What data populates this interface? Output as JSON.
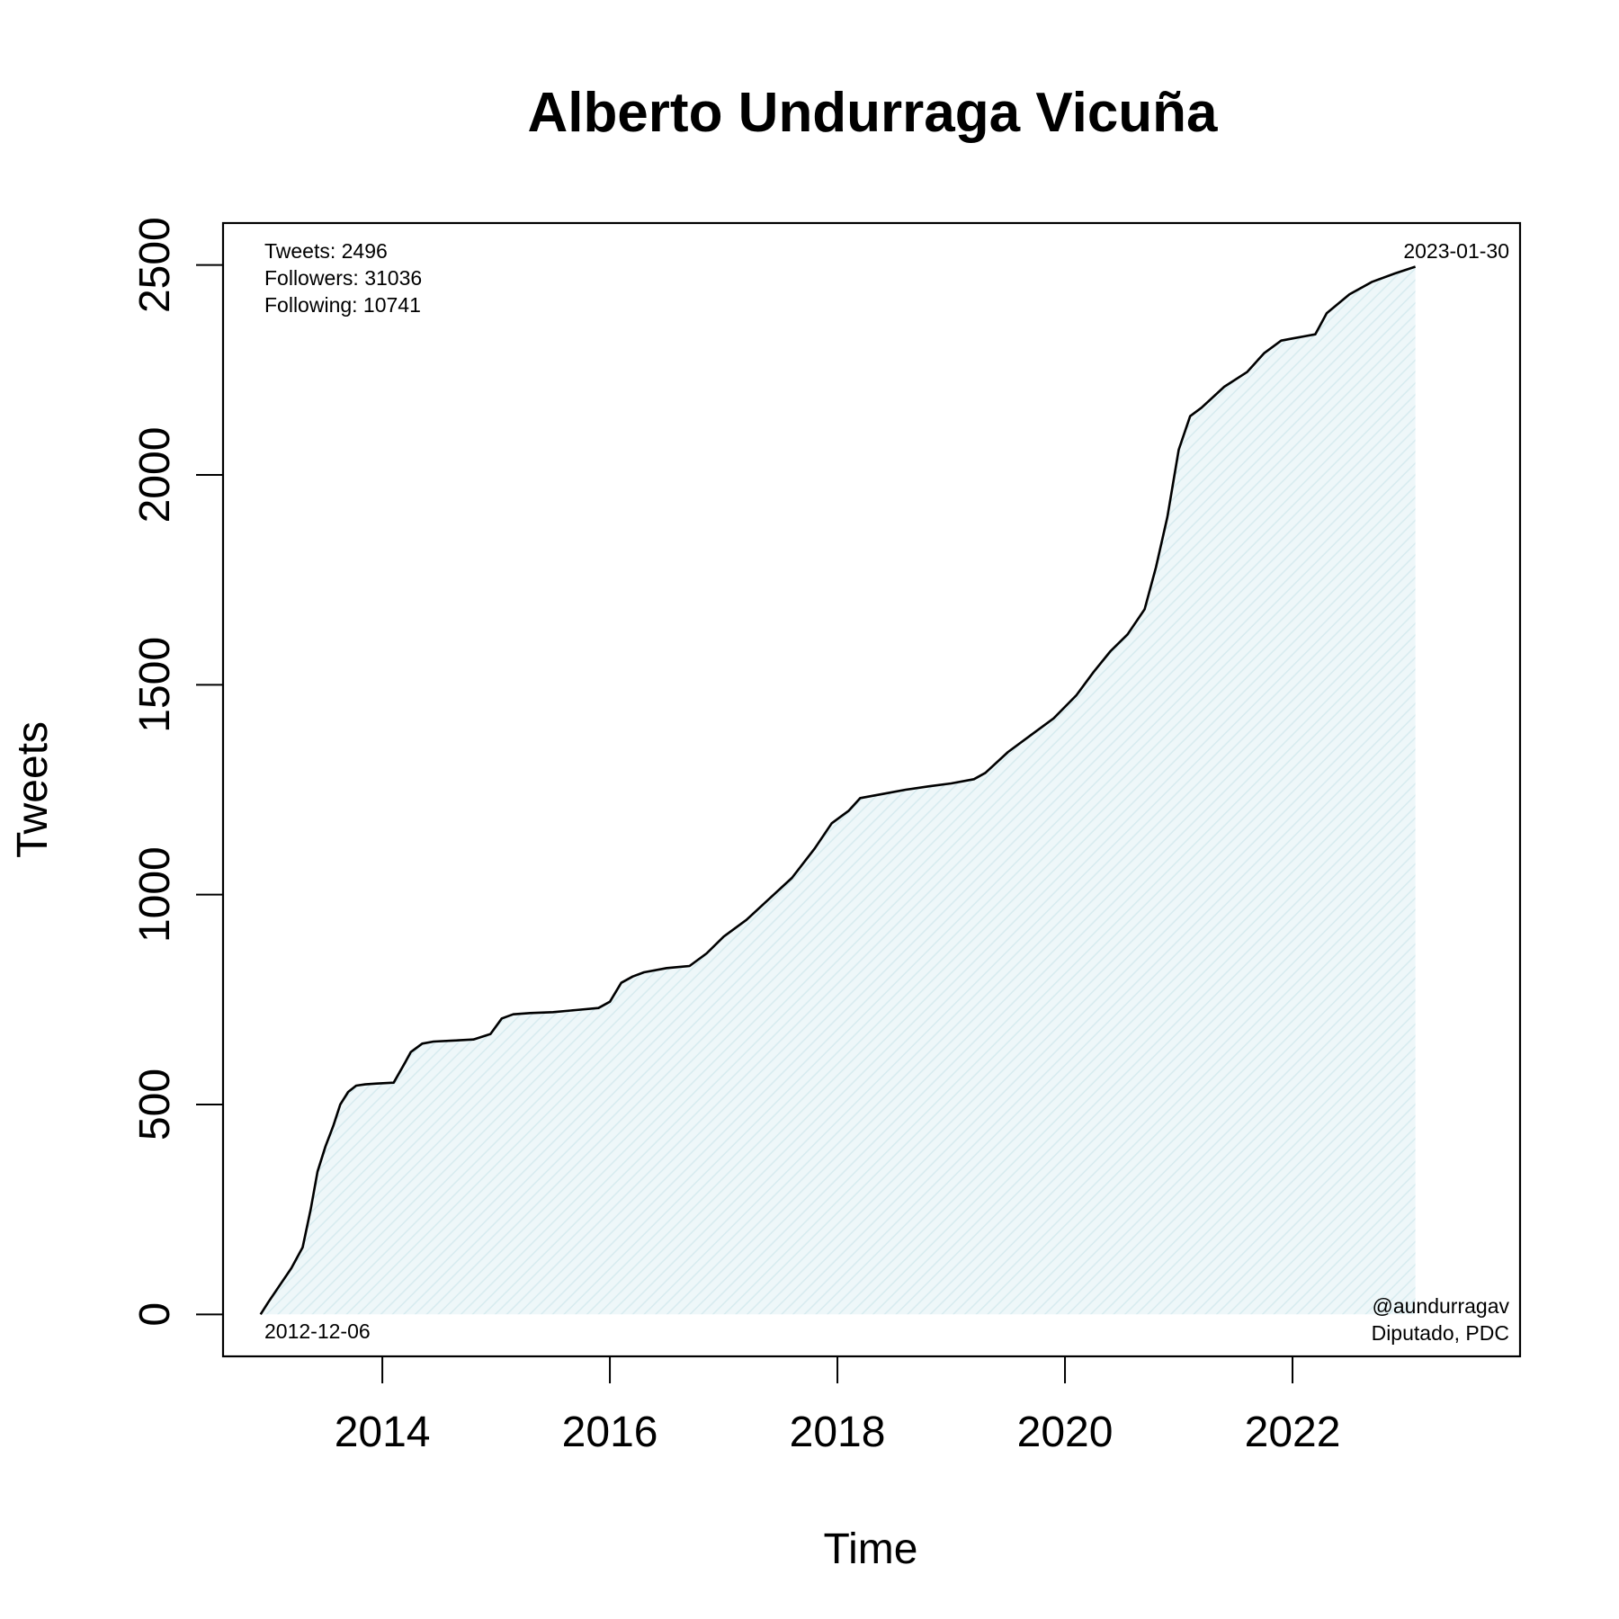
{
  "chart_data": {
    "type": "area",
    "title": "Alberto Undurraga Vicuña",
    "xlabel": "Time",
    "ylabel": "Tweets",
    "xlim": [
      2012.6,
      2024.0
    ],
    "ylim": [
      -100,
      2600
    ],
    "xticks": [
      2014,
      2016,
      2018,
      2020,
      2022
    ],
    "xtick_labels": [
      "2014",
      "2016",
      "2018",
      "2020",
      "2022"
    ],
    "yticks": [
      0,
      500,
      1000,
      1500,
      2000,
      2500
    ],
    "ytick_labels": [
      "0",
      "500",
      "1000",
      "1500",
      "2000",
      "2500"
    ],
    "grid": false,
    "fill_color": "#e6f3f5",
    "line_color": "#000000",
    "stats": [
      "Tweets: 2496",
      "Followers: 31036",
      "Following: 10741"
    ],
    "start_date": "2012-12-06",
    "end_date": "2023-01-30",
    "handle": "@aundurragav",
    "description": "Diputado, PDC",
    "series": [
      {
        "x": [
          2012.93,
          2013.0,
          2013.1,
          2013.2,
          2013.3,
          2013.37,
          2013.43,
          2013.5,
          2013.57,
          2013.63,
          2013.7,
          2013.77,
          2013.85,
          2013.95,
          2014.1,
          2014.2,
          2014.25,
          2014.35,
          2014.45,
          2014.6,
          2014.8,
          2014.95,
          2015.05,
          2015.15,
          2015.3,
          2015.5,
          2015.7,
          2015.9,
          2016.0,
          2016.1,
          2016.2,
          2016.3,
          2016.5,
          2016.7,
          2016.85,
          2017.0,
          2017.2,
          2017.4,
          2017.6,
          2017.8,
          2017.95,
          2018.1,
          2018.2,
          2018.4,
          2018.6,
          2018.8,
          2019.0,
          2019.2,
          2019.3,
          2019.5,
          2019.7,
          2019.9,
          2020.1,
          2020.25,
          2020.4,
          2020.55,
          2020.7,
          2020.8,
          2020.9,
          2021.0,
          2021.1,
          2021.2,
          2021.4,
          2021.6,
          2021.75,
          2021.9,
          2022.0,
          2022.1,
          2022.2,
          2022.3,
          2022.5,
          2022.7,
          2022.9,
          2023.08
        ],
        "y": [
          0,
          30,
          70,
          110,
          160,
          250,
          340,
          400,
          450,
          500,
          530,
          545,
          548,
          550,
          552,
          600,
          625,
          645,
          650,
          652,
          655,
          668,
          705,
          715,
          718,
          720,
          725,
          730,
          745,
          790,
          805,
          815,
          825,
          830,
          860,
          900,
          940,
          990,
          1040,
          1110,
          1170,
          1200,
          1230,
          1240,
          1250,
          1258,
          1265,
          1275,
          1290,
          1340,
          1380,
          1420,
          1475,
          1530,
          1580,
          1620,
          1680,
          1780,
          1900,
          2060,
          2140,
          2160,
          2210,
          2245,
          2290,
          2320,
          2325,
          2330,
          2335,
          2385,
          2430,
          2460,
          2480,
          2496
        ]
      }
    ]
  }
}
